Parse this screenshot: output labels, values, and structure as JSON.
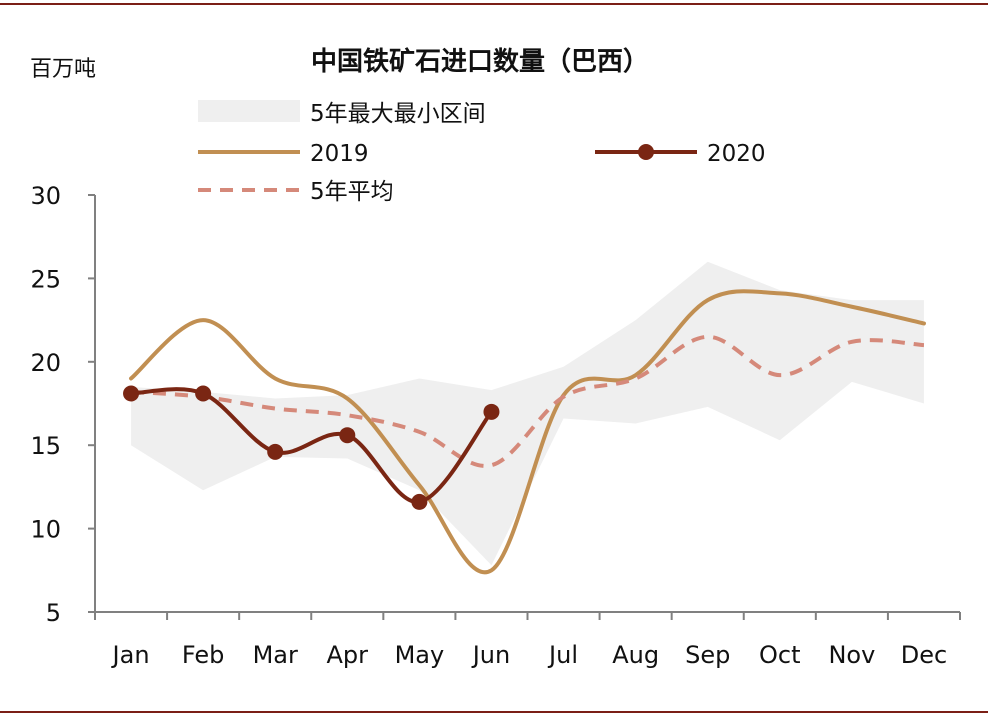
{
  "chart_data": {
    "type": "line",
    "title": "中国铁矿石进口数量（巴西）",
    "unit_label": "百万吨",
    "categories": [
      "Jan",
      "Feb",
      "Mar",
      "Apr",
      "May",
      "Jun",
      "Jul",
      "Aug",
      "Sep",
      "Oct",
      "Nov",
      "Dec"
    ],
    "ylim": [
      5,
      30
    ],
    "yticks": [
      "5",
      "10",
      "15",
      "20",
      "25",
      "30"
    ],
    "grid": false,
    "legend_position": "top",
    "range_band": {
      "name": "5年最大最小区间",
      "color": "#efefef",
      "upper": [
        18.5,
        18.2,
        17.8,
        18.0,
        19.0,
        18.3,
        19.7,
        22.5,
        26.0,
        24.3,
        23.7,
        23.7
      ],
      "lower": [
        15.0,
        12.3,
        14.3,
        14.2,
        12.3,
        7.8,
        16.6,
        16.3,
        17.3,
        15.3,
        18.8,
        17.5
      ]
    },
    "series": [
      {
        "name": "2019",
        "color": "#c18f52",
        "style": "solid",
        "values": [
          19.0,
          22.5,
          19.0,
          17.8,
          12.6,
          7.5,
          18.0,
          19.2,
          23.7,
          24.1,
          23.3,
          22.3
        ]
      },
      {
        "name": "2020",
        "color": "#7a2613",
        "style": "solid-markers",
        "values": [
          18.1,
          18.1,
          14.6,
          15.6,
          11.6,
          17.0,
          null,
          null,
          null,
          null,
          null,
          null
        ]
      },
      {
        "name": "5年平均",
        "color": "#d5897a",
        "style": "dashed",
        "values": [
          18.2,
          17.9,
          17.2,
          16.8,
          15.8,
          13.8,
          17.9,
          19.0,
          21.5,
          19.2,
          21.2,
          21.0
        ]
      }
    ]
  }
}
